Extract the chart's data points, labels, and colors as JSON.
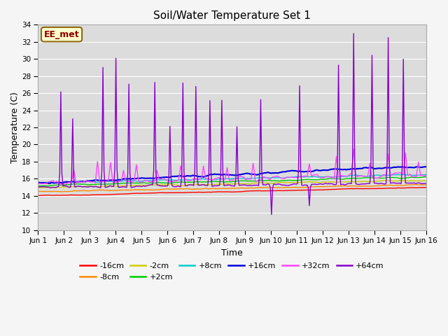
{
  "title": "Soil/Water Temperature Set 1",
  "xlabel": "Time",
  "ylabel": "Temperature (C)",
  "ylim": [
    10,
    34
  ],
  "xlim": [
    0,
    15
  ],
  "yticks": [
    10,
    12,
    14,
    16,
    18,
    20,
    22,
    24,
    26,
    28,
    30,
    32,
    34
  ],
  "xtick_labels": [
    "Jun 1",
    "Jun 2",
    "Jun 3",
    "Jun 4",
    "Jun 5",
    "Jun 6",
    "Jun 7",
    "Jun 8",
    "Jun 9",
    "Jun 10",
    "Jun 11",
    "Jun 12",
    "Jun 13",
    "Jun 14",
    "Jun 15",
    "Jun 16"
  ],
  "bg_color": "#e0e0e0",
  "plot_bg": "#dcdcdc",
  "annotation_text": "EE_met",
  "annotation_bg": "#ffffcc",
  "annotation_border": "#8b6914",
  "annotation_text_color": "#8b0000",
  "series": {
    "-16cm": {
      "color": "#ff0000",
      "linewidth": 1.0
    },
    "-8cm": {
      "color": "#ff8800",
      "linewidth": 1.0
    },
    "-2cm": {
      "color": "#cccc00",
      "linewidth": 1.0
    },
    "+2cm": {
      "color": "#00cc00",
      "linewidth": 1.0
    },
    "+8cm": {
      "color": "#00cccc",
      "linewidth": 1.0
    },
    "+16cm": {
      "color": "#0000dd",
      "linewidth": 1.5
    },
    "+32cm": {
      "color": "#ff44ff",
      "linewidth": 1.0
    },
    "+64cm": {
      "color": "#8800cc",
      "linewidth": 1.0
    }
  }
}
